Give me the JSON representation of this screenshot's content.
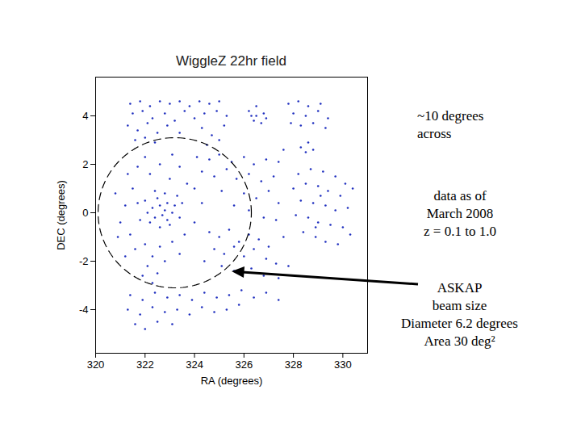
{
  "chart_data": {
    "type": "scatter",
    "title": "WiggleZ 22hr field",
    "x_label": "RA (degrees)",
    "y_label": "DEC (degrees)",
    "xlim": [
      320,
      331
    ],
    "ylim": [
      -5.8,
      5.6
    ],
    "xticks": [
      320,
      322,
      324,
      326,
      328,
      330
    ],
    "yticks": [
      -4,
      -2,
      0,
      2,
      4
    ],
    "color": "#1f2fbf",
    "marker": "dot",
    "x": [
      321.4,
      321.8,
      322.2,
      322.6,
      323.0,
      323.4,
      323.8,
      324.2,
      324.6,
      325.0,
      321.5,
      321.9,
      322.3,
      322.8,
      323.2,
      323.6,
      324.0,
      324.4,
      324.9,
      325.3,
      321.3,
      321.7,
      322.1,
      322.5,
      322.9,
      323.4,
      324.3,
      324.7,
      325.2,
      321.6,
      322.0,
      322.4,
      324.5,
      325.0,
      326.2,
      326.5,
      326.8,
      326.4,
      326.7,
      326.5,
      326.3,
      326.9,
      327.8,
      328.2,
      328.6,
      329.1,
      328.0,
      328.5,
      329.0,
      329.4,
      328.3,
      328.8,
      329.3,
      327.9,
      328.3,
      328.6,
      328.5,
      328.8,
      327.6,
      327.4,
      328.2,
      328.7,
      329.2,
      329.7,
      330.1,
      330.4,
      328.0,
      328.5,
      329.0,
      329.4,
      329.9,
      328.3,
      328.8,
      329.3,
      329.7,
      330.2,
      328.1,
      328.6,
      329.0,
      329.5,
      330.0,
      328.4,
      328.9,
      329.3,
      329.8,
      330.3,
      329.1,
      328.9,
      324.1,
      324.6,
      325.0,
      325.5,
      326.0,
      326.4,
      326.9,
      324.3,
      324.8,
      325.3,
      325.7,
      326.2,
      326.7,
      327.2,
      324.0,
      325.1,
      326.0,
      326.5,
      327.0,
      327.4,
      325.6,
      326.2,
      326.8,
      327.3,
      322.0,
      322.3,
      322.5,
      322.7,
      322.9,
      323.1,
      323.3,
      322.2,
      322.6,
      323.0,
      323.4,
      322.4,
      322.8,
      322.1,
      322.6,
      323.2,
      322.9,
      322.4,
      322.8,
      323.5,
      320.8,
      321.0,
      321.2,
      321.5,
      321.4,
      321.7,
      321.8,
      321.3,
      321.7,
      322.2,
      322.6,
      323.0,
      323.4,
      323.7,
      323.1,
      322.0,
      323.6,
      324.0,
      324.3,
      321.6,
      322.0,
      322.3,
      322.6,
      322.1,
      322.5,
      322.8,
      321.9,
      322.3,
      323.1,
      323.4,
      320.9,
      321.2,
      324.6,
      325.0,
      325.4,
      325.8,
      326.2,
      326.6,
      327.0,
      324.8,
      325.2,
      325.6,
      326.0,
      326.4,
      326.9,
      327.3,
      325.1,
      325.6,
      326.3,
      326.8,
      327.4,
      327.8,
      327.6,
      324.4,
      321.4,
      321.9,
      322.4,
      322.9,
      323.4,
      323.9,
      324.4,
      324.9,
      325.4,
      325.9,
      326.4,
      326.9,
      321.3,
      321.8,
      322.3,
      322.8,
      323.3,
      323.8,
      324.3,
      324.8,
      325.3,
      325.8,
      321.6,
      322.0,
      322.5,
      323.1,
      327.4
    ],
    "y": [
      4.5,
      4.6,
      4.4,
      4.6,
      4.5,
      4.6,
      4.4,
      4.6,
      4.5,
      4.6,
      4.1,
      4.2,
      3.9,
      4.1,
      3.8,
      4.2,
      3.9,
      4.1,
      4.2,
      4.0,
      3.6,
      3.4,
      3.7,
      3.3,
      3.6,
      3.3,
      3.5,
      3.2,
      3.6,
      3.0,
      3.1,
      2.9,
      2.8,
      3.0,
      4.2,
      4.4,
      4.1,
      3.8,
      3.7,
      4.0,
      4.0,
      3.9,
      4.5,
      4.6,
      4.4,
      4.5,
      4.1,
      4.0,
      4.2,
      3.9,
      3.6,
      3.7,
      3.5,
      3.7,
      2.7,
      2.9,
      2.5,
      2.6,
      2.6,
      2.1,
      1.6,
      1.8,
      1.7,
      1.5,
      1.2,
      1.0,
      1.0,
      1.2,
      1.1,
      0.9,
      0.7,
      0.5,
      0.4,
      0.3,
      0.1,
      0.2,
      -0.1,
      -0.2,
      -0.4,
      -0.5,
      -0.6,
      -0.8,
      -1.0,
      -1.2,
      -1.3,
      -0.9,
      0.7,
      -0.6,
      2.3,
      2.2,
      2.4,
      2.1,
      2.3,
      2.0,
      2.2,
      1.7,
      1.5,
      1.8,
      1.4,
      1.6,
      1.3,
      1.5,
      1.0,
      0.9,
      0.8,
      0.6,
      0.9,
      0.4,
      0.3,
      0.1,
      -0.2,
      -0.3,
      0.5,
      0.2,
      0.6,
      -0.1,
      0.4,
      0.0,
      0.7,
      -0.4,
      -0.6,
      -0.5,
      -0.2,
      0.9,
      0.8,
      0.0,
      0.3,
      0.3,
      -0.3,
      -0.2,
      0.1,
      0.4,
      0.8,
      -0.4,
      0.3,
      1.0,
      -0.9,
      0.4,
      -0.3,
      1.6,
      1.9,
      1.6,
      2.0,
      1.4,
      1.9,
      1.2,
      2.4,
      2.3,
      -0.9,
      -0.4,
      0.4,
      -1.5,
      -1.3,
      -1.8,
      -1.4,
      -2.2,
      -2.5,
      -2.0,
      -2.6,
      -2.9,
      -1.2,
      -1.7,
      -1.0,
      -1.8,
      -0.8,
      -1.0,
      -0.7,
      -1.2,
      -0.9,
      -1.1,
      -1.4,
      -1.5,
      -1.7,
      -1.4,
      -1.8,
      -1.5,
      -1.9,
      -2.1,
      -2.2,
      -2.4,
      -2.3,
      -2.6,
      -2.7,
      -2.2,
      -1.0,
      -2.0,
      -3.4,
      -3.6,
      -3.3,
      -3.5,
      -3.4,
      -3.6,
      -3.3,
      -3.5,
      -3.4,
      -3.2,
      -3.5,
      -3.3,
      -4.0,
      -4.2,
      -3.9,
      -4.1,
      -4.0,
      -4.2,
      -3.9,
      -4.1,
      -4.0,
      -3.8,
      -4.6,
      -4.8,
      -4.5,
      -4.6,
      -3.6
    ],
    "circle": {
      "center_x": 323.2,
      "center_y": 0,
      "diameter": 6.2,
      "line_style": "dashed"
    },
    "annotations": [
      [
        "~10 degrees",
        "across"
      ],
      [
        "data as of",
        "March 2008",
        "z = 0.1 to 1.0"
      ],
      [
        "ASKAP",
        "beam size",
        "Diameter 6.2 degrees",
        "Area 30 deg²"
      ]
    ]
  }
}
